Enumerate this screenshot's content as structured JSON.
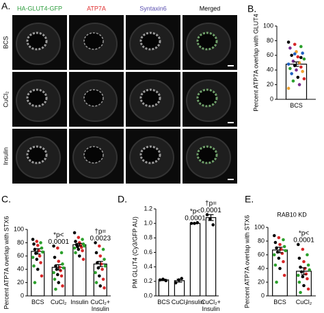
{
  "panel_labels": [
    "A.",
    "B.",
    "C.",
    "D.",
    "E."
  ],
  "image_panel": {
    "columns": [
      "HA-GLUT4-GFP",
      "ATP7A",
      "Syntaxin6",
      "Merged"
    ],
    "header_colors": [
      "#2e9e3e",
      "#e03030",
      "#5a4fb0",
      "#000000"
    ],
    "rows": [
      "BCS",
      "CuCl₂",
      "Insulin"
    ]
  },
  "chart_data": [
    {
      "type": "bar",
      "ylabel": "Percent ATP7A overlap with GLUT4",
      "categories": [
        "BCS"
      ],
      "values": [
        48
      ],
      "errors": [
        3
      ],
      "points": [
        [
          78,
          75,
          72,
          70,
          65,
          63,
          60,
          58,
          55,
          52,
          50,
          48,
          46,
          44,
          42,
          40,
          38,
          35,
          30,
          28,
          25,
          20,
          15,
          62,
          57
        ]
      ],
      "point_colors": [
        "#000000",
        "#d62728",
        "#2ca02c",
        "#7b2d8e",
        "#f0a030",
        "#1f5fbf"
      ],
      "ylim": [
        0,
        100
      ],
      "yticks": [
        0,
        20,
        40,
        60,
        80,
        100
      ]
    },
    {
      "type": "bar",
      "ylabel": "Percent ATP7A overlap with STX6",
      "categories": [
        "BCS",
        "CuCl₂",
        "Insulin",
        "CuCl₂+\nInsulin"
      ],
      "values": [
        67,
        43,
        77,
        48
      ],
      "errors": [
        4,
        4,
        2,
        4
      ],
      "points": [
        [
          85,
          82,
          80,
          78,
          76,
          72,
          70,
          68,
          66,
          64,
          60,
          58,
          55,
          50,
          45,
          40,
          30,
          20
        ],
        [
          75,
          72,
          65,
          58,
          52,
          48,
          45,
          43,
          42,
          40,
          38,
          35,
          32,
          30,
          25,
          20,
          15,
          10
        ],
        [
          95,
          88,
          85,
          82,
          80,
          78,
          77,
          76,
          75,
          74,
          73,
          72,
          70,
          68,
          65,
          60,
          55
        ],
        [
          80,
          75,
          70,
          65,
          60,
          55,
          50,
          48,
          45,
          42,
          40,
          35,
          30,
          25,
          20,
          15,
          12
        ]
      ],
      "point_colors": [
        "#000000",
        "#d62728",
        "#2ca02c"
      ],
      "annotations": [
        null,
        [
          "*p<",
          "0.0001"
        ],
        null,
        [
          "†p=",
          "0.0023"
        ]
      ],
      "ylim": [
        0,
        100
      ],
      "yticks": [
        0,
        20,
        40,
        60,
        80,
        100
      ]
    },
    {
      "type": "bar",
      "ylabel": "PM GLUT4 (Cy3/GFP AU)",
      "categories": [
        "BCS",
        "CuCl₂",
        "Insulin",
        "CuCl₂+\nInsulin"
      ],
      "values": [
        0.22,
        0.21,
        1.0,
        1.08
      ],
      "errors": [
        0.01,
        0.02,
        0.005,
        0.04
      ],
      "points": [
        [
          0.22,
          0.23,
          0.21
        ],
        [
          0.18,
          0.22,
          0.24
        ],
        [
          1.0,
          1.0,
          1.01
        ],
        [
          1.12,
          1.06,
          0.98
        ]
      ],
      "point_colors": [
        "#000000"
      ],
      "annotations": [
        null,
        null,
        [
          "*p<",
          "0.0001"
        ],
        [
          "†p=",
          "0.0001"
        ]
      ],
      "ylim": [
        0,
        1.2
      ],
      "yticks": [
        {
          "value": 0,
          "label": "0.0"
        },
        0.2,
        0.4,
        0.6,
        0.8,
        {
          "value": 1,
          "label": "1.0"
        },
        1.2
      ]
    },
    {
      "type": "bar",
      "title": "RAB10 KD",
      "ylabel": "Percent ATP7A overlap with STX6",
      "categories": [
        "BCS",
        "CuCl₂"
      ],
      "values": [
        67,
        36
      ],
      "errors": [
        4,
        5
      ],
      "points": [
        [
          88,
          85,
          82,
          78,
          75,
          72,
          70,
          68,
          66,
          64,
          62,
          60,
          55,
          50,
          45,
          40,
          30,
          20
        ],
        [
          75,
          68,
          60,
          55,
          50,
          45,
          42,
          40,
          38,
          35,
          32,
          30,
          28,
          25,
          20,
          15,
          10,
          5
        ]
      ],
      "point_colors": [
        "#000000",
        "#d62728",
        "#2ca02c"
      ],
      "annotations": [
        null,
        [
          "*p<",
          "0.0001"
        ]
      ],
      "ylim": [
        0,
        100
      ],
      "yticks": [
        0,
        20,
        40,
        60,
        80,
        100
      ]
    }
  ]
}
